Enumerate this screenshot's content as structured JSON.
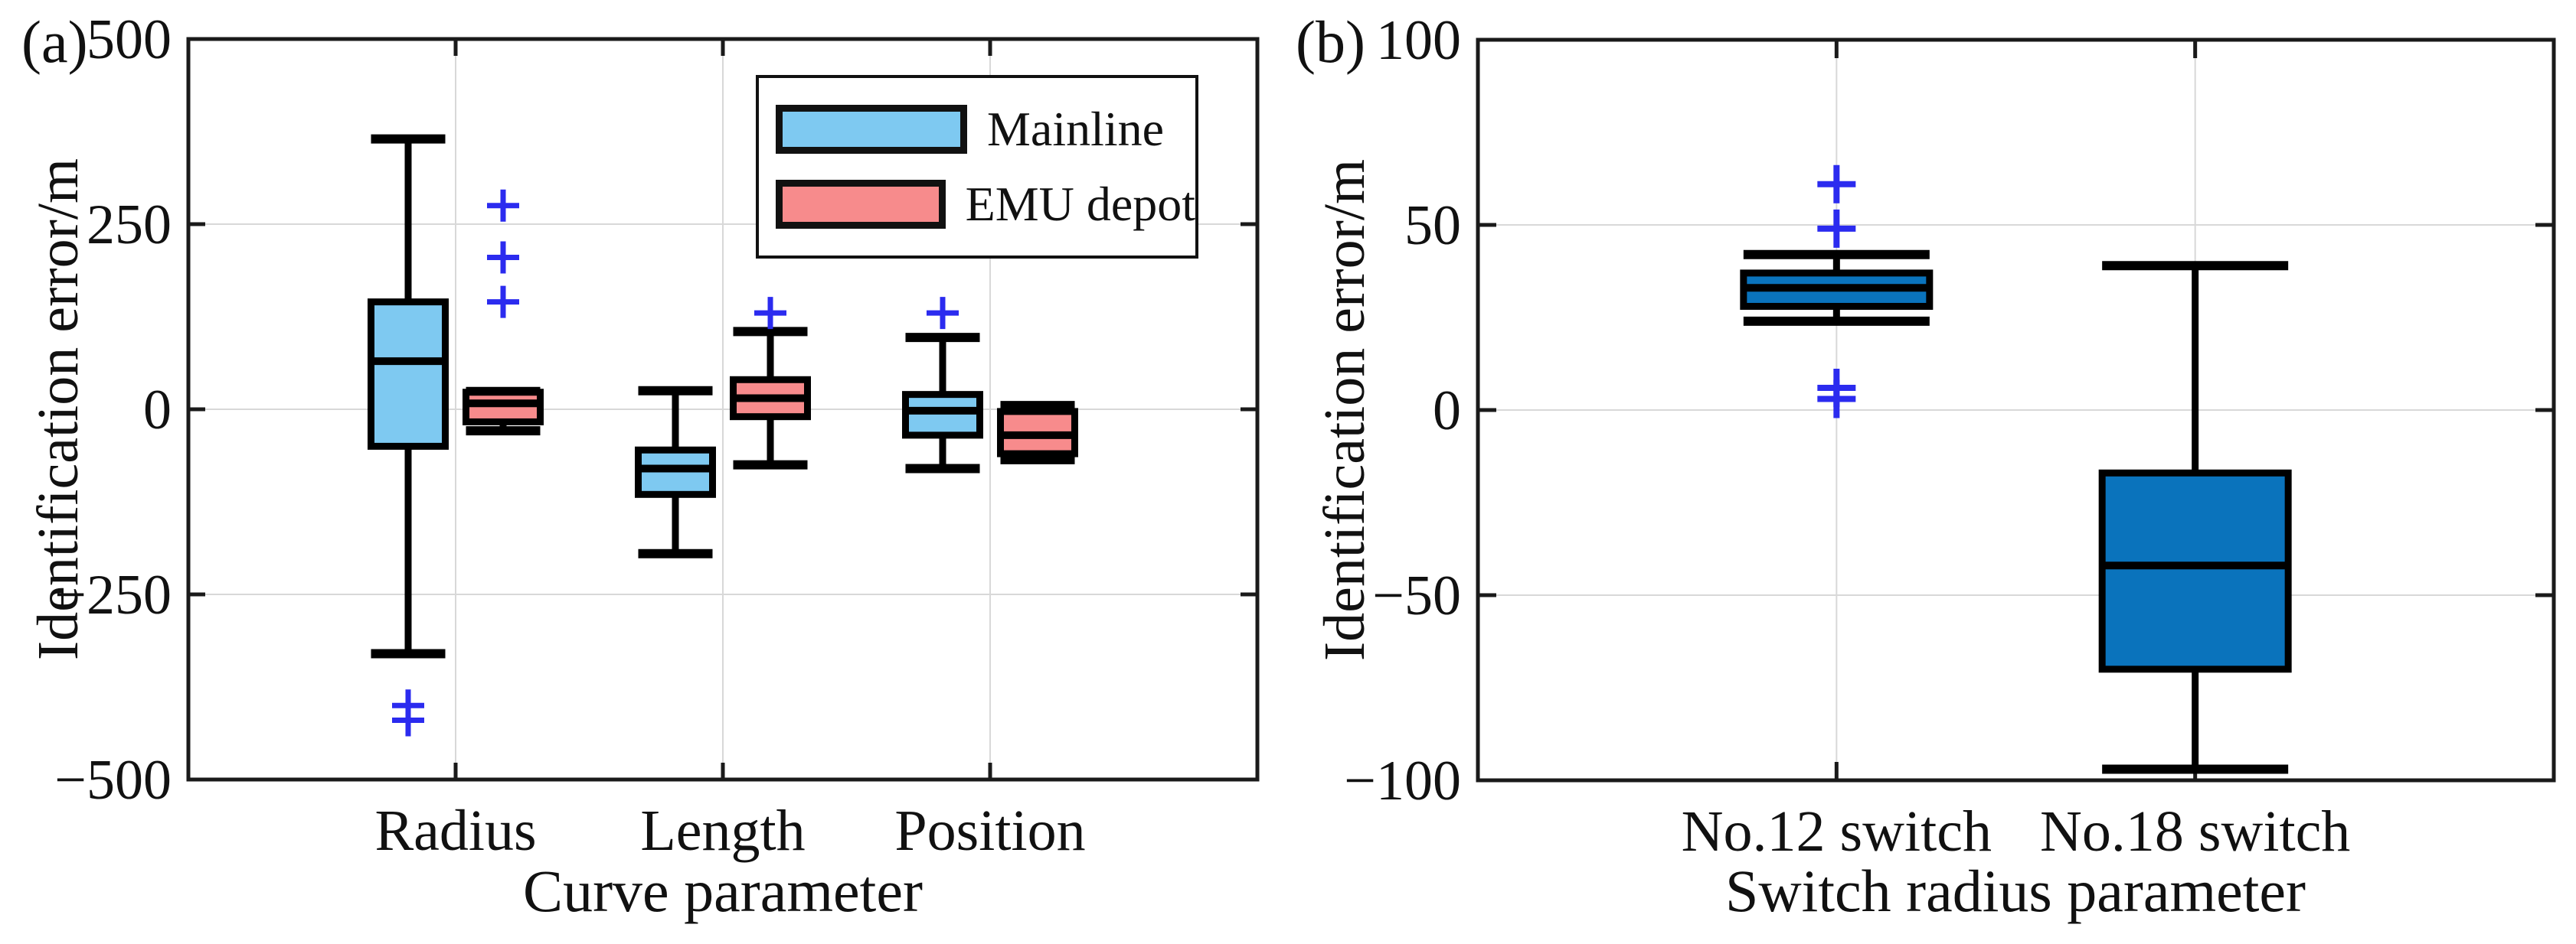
{
  "chart_data": [
    {
      "type": "boxplot",
      "panel": "a",
      "tag": "(a)",
      "title": "",
      "xlabel": "Curve parameter",
      "ylabel": "Identification error/m",
      "ylim": [
        -500,
        500
      ],
      "yticks": [
        500,
        250,
        0,
        -250,
        -500
      ],
      "categories": [
        "Radius",
        "Length",
        "Position"
      ],
      "grid": "on",
      "legend_position": "inside-top-center",
      "outlier_marker": "plus",
      "outlier_color": "#2B2BEF",
      "frame_color": "#1A1A1A",
      "grid_color": "#D8D8D8",
      "series": [
        {
          "name": "Mainline",
          "color": "#7EC9F1",
          "boxes": [
            {
              "category": "Radius",
              "whisker_low": -330,
              "q1": -50,
              "median": 65,
              "q3": 145,
              "whisker_high": 365,
              "outliers": [
                -400,
                -420
              ]
            },
            {
              "category": "Length",
              "whisker_low": -195,
              "q1": -115,
              "median": -80,
              "q3": -55,
              "whisker_high": 25,
              "outliers": []
            },
            {
              "category": "Position",
              "whisker_low": -80,
              "q1": -35,
              "median": -2,
              "q3": 20,
              "whisker_high": 97,
              "outliers": [
                130
              ]
            }
          ]
        },
        {
          "name": "EMU depot",
          "color": "#F78B8C",
          "boxes": [
            {
              "category": "Radius",
              "whisker_low": -29,
              "q1": -17,
              "median": 8,
              "q3": 23,
              "whisker_high": 24,
              "outliers": [
                275,
                205,
                145
              ]
            },
            {
              "category": "Length",
              "whisker_low": -75,
              "q1": -10,
              "median": 15,
              "q3": 40,
              "whisker_high": 105,
              "outliers": [
                130
              ]
            },
            {
              "category": "Position",
              "whisker_low": -68,
              "q1": -60,
              "median": -35,
              "q3": -3,
              "whisker_high": 5,
              "outliers": []
            }
          ]
        }
      ]
    },
    {
      "type": "boxplot",
      "panel": "b",
      "tag": "(b)",
      "title": "",
      "xlabel": "Switch radius parameter",
      "ylabel": "Identification error/m",
      "ylim": [
        -100,
        100
      ],
      "yticks": [
        100,
        50,
        0,
        -50,
        -100
      ],
      "categories": [
        "No.12 switch",
        "No.18 switch"
      ],
      "grid": "on",
      "outlier_marker": "plus",
      "outlier_color": "#2B2BEF",
      "frame_color": "#1A1A1A",
      "grid_color": "#D8D8D8",
      "series": [
        {
          "name": "",
          "color": "#0A73BC",
          "boxes": [
            {
              "category": "No.12 switch",
              "whisker_low": 24,
              "q1": 28,
              "median": 33,
              "q3": 37,
              "whisker_high": 42,
              "outliers": [
                61,
                49,
                6,
                3
              ]
            },
            {
              "category": "No.18 switch",
              "whisker_low": -97,
              "q1": -70,
              "median": -42,
              "q3": -17,
              "whisker_high": 39,
              "outliers": []
            }
          ]
        }
      ]
    }
  ]
}
